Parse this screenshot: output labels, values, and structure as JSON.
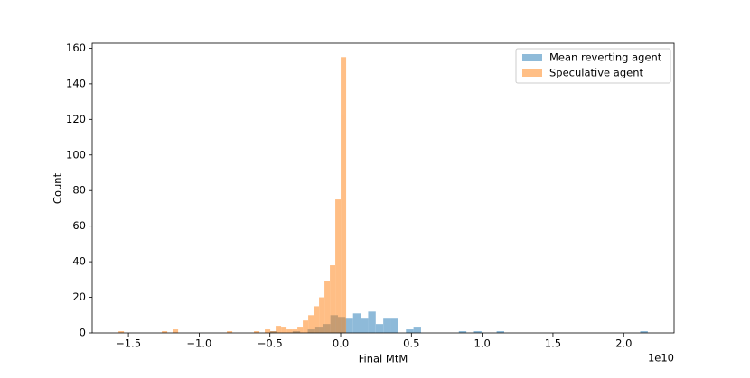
{
  "chart_data": {
    "type": "histogram",
    "xlabel": "Final MtM",
    "ylabel": "Count",
    "x_offset_text": "1e10",
    "xlim": [
      -1.756,
      2.356
    ],
    "ylim": [
      0,
      162.75
    ],
    "xticks": [
      {
        "value": -1.5,
        "label": "−1.5"
      },
      {
        "value": -1.0,
        "label": "−1.0"
      },
      {
        "value": -0.5,
        "label": "−0.5"
      },
      {
        "value": 0.0,
        "label": "0.0"
      },
      {
        "value": 0.5,
        "label": "0.5"
      },
      {
        "value": 1.0,
        "label": "1.0"
      },
      {
        "value": 1.5,
        "label": "1.5"
      },
      {
        "value": 2.0,
        "label": "2.0"
      }
    ],
    "yticks": [
      0,
      20,
      40,
      60,
      80,
      100,
      120,
      140,
      160
    ],
    "legend": "upper right",
    "alpha": 0.5,
    "series": [
      {
        "name": "Mean reverting agent",
        "color": "#1f77b4",
        "bins": [
          -0.5,
          -0.4466,
          -0.3932,
          -0.3398,
          -0.2864,
          -0.233,
          -0.1796,
          -0.1262,
          -0.0728,
          -0.0194,
          0.034,
          0.0874,
          0.1408,
          0.1942,
          0.2476,
          0.301,
          0.3544,
          0.4078,
          0.4612,
          0.5146,
          0.568,
          0.6214,
          0.6748,
          0.7282,
          0.7816,
          0.835,
          0.8884,
          0.9418,
          0.9952,
          1.0486,
          1.102,
          1.1554,
          1.2088,
          1.2622,
          1.3156,
          1.369,
          1.4224,
          1.4758,
          1.5292,
          1.5826,
          1.636,
          1.6894,
          1.7428,
          1.7962,
          1.8496,
          1.903,
          1.9564,
          2.0098,
          2.0632,
          2.1166,
          2.17
        ],
        "values": [
          1,
          0,
          0,
          1,
          0,
          2,
          3,
          5,
          10,
          9,
          8,
          11,
          8,
          12,
          5,
          8,
          8,
          0,
          2,
          3,
          0,
          0,
          0,
          0,
          0,
          1,
          0,
          1,
          0,
          0,
          1,
          0,
          0,
          0,
          0,
          0,
          0,
          0,
          0,
          0,
          0,
          0,
          0,
          0,
          0,
          0,
          0,
          0,
          0,
          1
        ]
      },
      {
        "name": "Speculative agent",
        "color": "#ff7f0e",
        "bins": [
          -1.57,
          -1.5317,
          -1.4934,
          -1.4551,
          -1.4168,
          -1.3785,
          -1.3402,
          -1.3019,
          -1.2636,
          -1.2253,
          -1.187,
          -1.1487,
          -1.1104,
          -1.0721,
          -1.0338,
          -0.9955,
          -0.9572,
          -0.9189,
          -0.8806,
          -0.8423,
          -0.804,
          -0.7657,
          -0.7274,
          -0.6891,
          -0.6508,
          -0.6125,
          -0.5742,
          -0.5359,
          -0.4976,
          -0.4593,
          -0.421,
          -0.3827,
          -0.3444,
          -0.3061,
          -0.2678,
          -0.2295,
          -0.1912,
          -0.1529,
          -0.1146,
          -0.0763,
          -0.038,
          0.0003,
          0.0386
        ],
        "values": [
          1,
          0,
          0,
          0,
          0,
          0,
          0,
          0,
          1,
          0,
          2,
          0,
          0,
          0,
          0,
          0,
          0,
          0,
          0,
          0,
          1,
          0,
          0,
          0,
          0,
          1,
          0,
          2,
          1,
          4,
          3,
          2,
          2,
          3,
          7,
          10,
          15,
          20,
          29,
          38,
          75,
          155
        ]
      }
    ]
  }
}
